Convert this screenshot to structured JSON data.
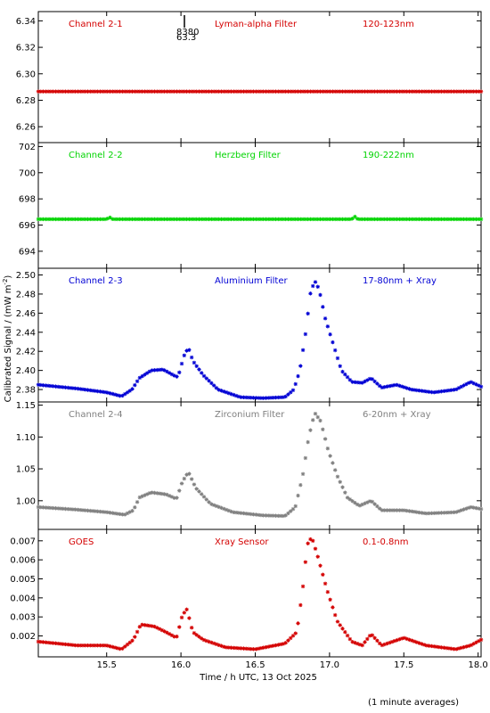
{
  "y_axis_label": "Calibrated Signal / (mW m",
  "y_axis_label_sup": "-2",
  "y_axis_label_end": ")",
  "x_axis_label": "Time / h UTC, 13 Oct 2025",
  "footnote": "(1 minute averages)",
  "stray_label_1": "8380",
  "stray_label_2": "63.3",
  "chart_data": [
    {
      "type": "scatter",
      "labels": [
        "Channel 2-1",
        "Lyman-alpha Filter",
        "120-123nm"
      ],
      "color": "#d40000",
      "xlim": [
        15.04,
        18.02
      ],
      "ylim": [
        6.248,
        6.347
      ],
      "yticks": [
        "6.26",
        "6.28",
        "6.30",
        "6.32",
        "6.34"
      ],
      "ytick_values": [
        6.26,
        6.28,
        6.3,
        6.32,
        6.34
      ],
      "profile": [
        [
          15.04,
          6.2866
        ],
        [
          18.02,
          6.2866
        ]
      ]
    },
    {
      "type": "scatter",
      "labels": [
        "Channel 2-2",
        "Herzberg Filter",
        "190-222nm"
      ],
      "color": "#00d400",
      "xlim": [
        15.04,
        18.02
      ],
      "ylim": [
        692.7,
        702.3
      ],
      "yticks": [
        "694",
        "696",
        "698",
        "700",
        "702"
      ],
      "ytick_values": [
        694,
        696,
        698,
        700,
        702
      ],
      "profile": [
        [
          15.04,
          696.45
        ],
        [
          15.5,
          696.45
        ],
        [
          15.52,
          696.6
        ],
        [
          15.54,
          696.45
        ],
        [
          17.15,
          696.45
        ],
        [
          17.17,
          696.65
        ],
        [
          17.19,
          696.45
        ],
        [
          18.02,
          696.45
        ]
      ]
    },
    {
      "type": "scatter",
      "labels": [
        "Channel 2-3",
        "Aluminium Filter",
        "17-80nm + Xray"
      ],
      "color": "#0000d4",
      "xlim": [
        15.04,
        18.02
      ],
      "ylim": [
        2.367,
        2.507
      ],
      "yticks": [
        "2.38",
        "2.40",
        "2.42",
        "2.44",
        "2.46",
        "2.48",
        "2.50"
      ],
      "ytick_values": [
        2.38,
        2.4,
        2.42,
        2.44,
        2.46,
        2.48,
        2.5
      ],
      "profile": [
        [
          15.04,
          2.385
        ],
        [
          15.3,
          2.381
        ],
        [
          15.5,
          2.377
        ],
        [
          15.6,
          2.373
        ],
        [
          15.67,
          2.38
        ],
        [
          15.72,
          2.392
        ],
        [
          15.8,
          2.4
        ],
        [
          15.88,
          2.401
        ],
        [
          15.95,
          2.395
        ],
        [
          15.98,
          2.393
        ],
        [
          16.02,
          2.415
        ],
        [
          16.05,
          2.424
        ],
        [
          16.08,
          2.41
        ],
        [
          16.15,
          2.395
        ],
        [
          16.25,
          2.38
        ],
        [
          16.4,
          2.372
        ],
        [
          16.55,
          2.371
        ],
        [
          16.7,
          2.372
        ],
        [
          16.76,
          2.38
        ],
        [
          16.8,
          2.4
        ],
        [
          16.84,
          2.44
        ],
        [
          16.87,
          2.48
        ],
        [
          16.9,
          2.494
        ],
        [
          16.93,
          2.485
        ],
        [
          16.97,
          2.455
        ],
        [
          17.02,
          2.43
        ],
        [
          17.08,
          2.4
        ],
        [
          17.15,
          2.388
        ],
        [
          17.22,
          2.387
        ],
        [
          17.28,
          2.392
        ],
        [
          17.35,
          2.382
        ],
        [
          17.45,
          2.385
        ],
        [
          17.55,
          2.38
        ],
        [
          17.7,
          2.377
        ],
        [
          17.85,
          2.38
        ],
        [
          17.95,
          2.388
        ],
        [
          18.02,
          2.383
        ]
      ]
    },
    {
      "type": "scatter",
      "labels": [
        "Channel 2-4",
        "Zirconium Filter",
        "6-20nm + Xray"
      ],
      "color": "#808080",
      "xlim": [
        15.04,
        18.02
      ],
      "ylim": [
        0.955,
        1.155
      ],
      "yticks": [
        "1.00",
        "1.05",
        "1.10",
        "1.15"
      ],
      "ytick_values": [
        1.0,
        1.05,
        1.1,
        1.15
      ],
      "profile": [
        [
          15.04,
          0.99
        ],
        [
          15.3,
          0.986
        ],
        [
          15.5,
          0.982
        ],
        [
          15.62,
          0.978
        ],
        [
          15.68,
          0.985
        ],
        [
          15.72,
          1.005
        ],
        [
          15.8,
          1.013
        ],
        [
          15.9,
          1.01
        ],
        [
          15.97,
          1.003
        ],
        [
          16.01,
          1.03
        ],
        [
          16.05,
          1.045
        ],
        [
          16.1,
          1.02
        ],
        [
          16.2,
          0.995
        ],
        [
          16.35,
          0.982
        ],
        [
          16.55,
          0.977
        ],
        [
          16.7,
          0.976
        ],
        [
          16.77,
          0.99
        ],
        [
          16.82,
          1.04
        ],
        [
          16.86,
          1.1
        ],
        [
          16.9,
          1.138
        ],
        [
          16.94,
          1.125
        ],
        [
          16.99,
          1.08
        ],
        [
          17.05,
          1.04
        ],
        [
          17.12,
          1.005
        ],
        [
          17.2,
          0.992
        ],
        [
          17.28,
          1.0
        ],
        [
          17.35,
          0.985
        ],
        [
          17.5,
          0.985
        ],
        [
          17.65,
          0.98
        ],
        [
          17.85,
          0.982
        ],
        [
          17.95,
          0.99
        ],
        [
          18.02,
          0.987
        ]
      ]
    },
    {
      "type": "scatter",
      "labels": [
        "GOES",
        "Xray Sensor",
        "0.1-0.8nm"
      ],
      "color": "#d40000",
      "xlim": [
        15.04,
        18.02
      ],
      "ylim": [
        0.0009,
        0.0076
      ],
      "yticks": [
        "0.002",
        "0.003",
        "0.004",
        "0.005",
        "0.006",
        "0.007"
      ],
      "ytick_values": [
        0.002,
        0.003,
        0.004,
        0.005,
        0.006,
        0.007
      ],
      "profile": [
        [
          15.04,
          0.0017
        ],
        [
          15.3,
          0.0015
        ],
        [
          15.5,
          0.0015
        ],
        [
          15.6,
          0.0013
        ],
        [
          15.68,
          0.0018
        ],
        [
          15.73,
          0.0026
        ],
        [
          15.82,
          0.0025
        ],
        [
          15.9,
          0.0022
        ],
        [
          15.97,
          0.0019
        ],
        [
          16.01,
          0.0031
        ],
        [
          16.04,
          0.0034
        ],
        [
          16.08,
          0.0022
        ],
        [
          16.15,
          0.0018
        ],
        [
          16.3,
          0.0014
        ],
        [
          16.5,
          0.0013
        ],
        [
          16.7,
          0.0016
        ],
        [
          16.78,
          0.0022
        ],
        [
          16.82,
          0.0045
        ],
        [
          16.85,
          0.0068
        ],
        [
          16.88,
          0.0072
        ],
        [
          16.92,
          0.0062
        ],
        [
          16.98,
          0.0045
        ],
        [
          17.05,
          0.0028
        ],
        [
          17.15,
          0.0017
        ],
        [
          17.22,
          0.0015
        ],
        [
          17.28,
          0.0021
        ],
        [
          17.35,
          0.0015
        ],
        [
          17.5,
          0.0019
        ],
        [
          17.65,
          0.0015
        ],
        [
          17.85,
          0.0013
        ],
        [
          17.95,
          0.0015
        ],
        [
          18.02,
          0.0018
        ]
      ]
    }
  ],
  "x_ticks": [
    "15.5",
    "16.0",
    "16.5",
    "17.0",
    "17.5",
    "18.0"
  ],
  "x_tick_values": [
    15.5,
    16.0,
    16.5,
    17.0,
    17.5,
    18.0
  ]
}
